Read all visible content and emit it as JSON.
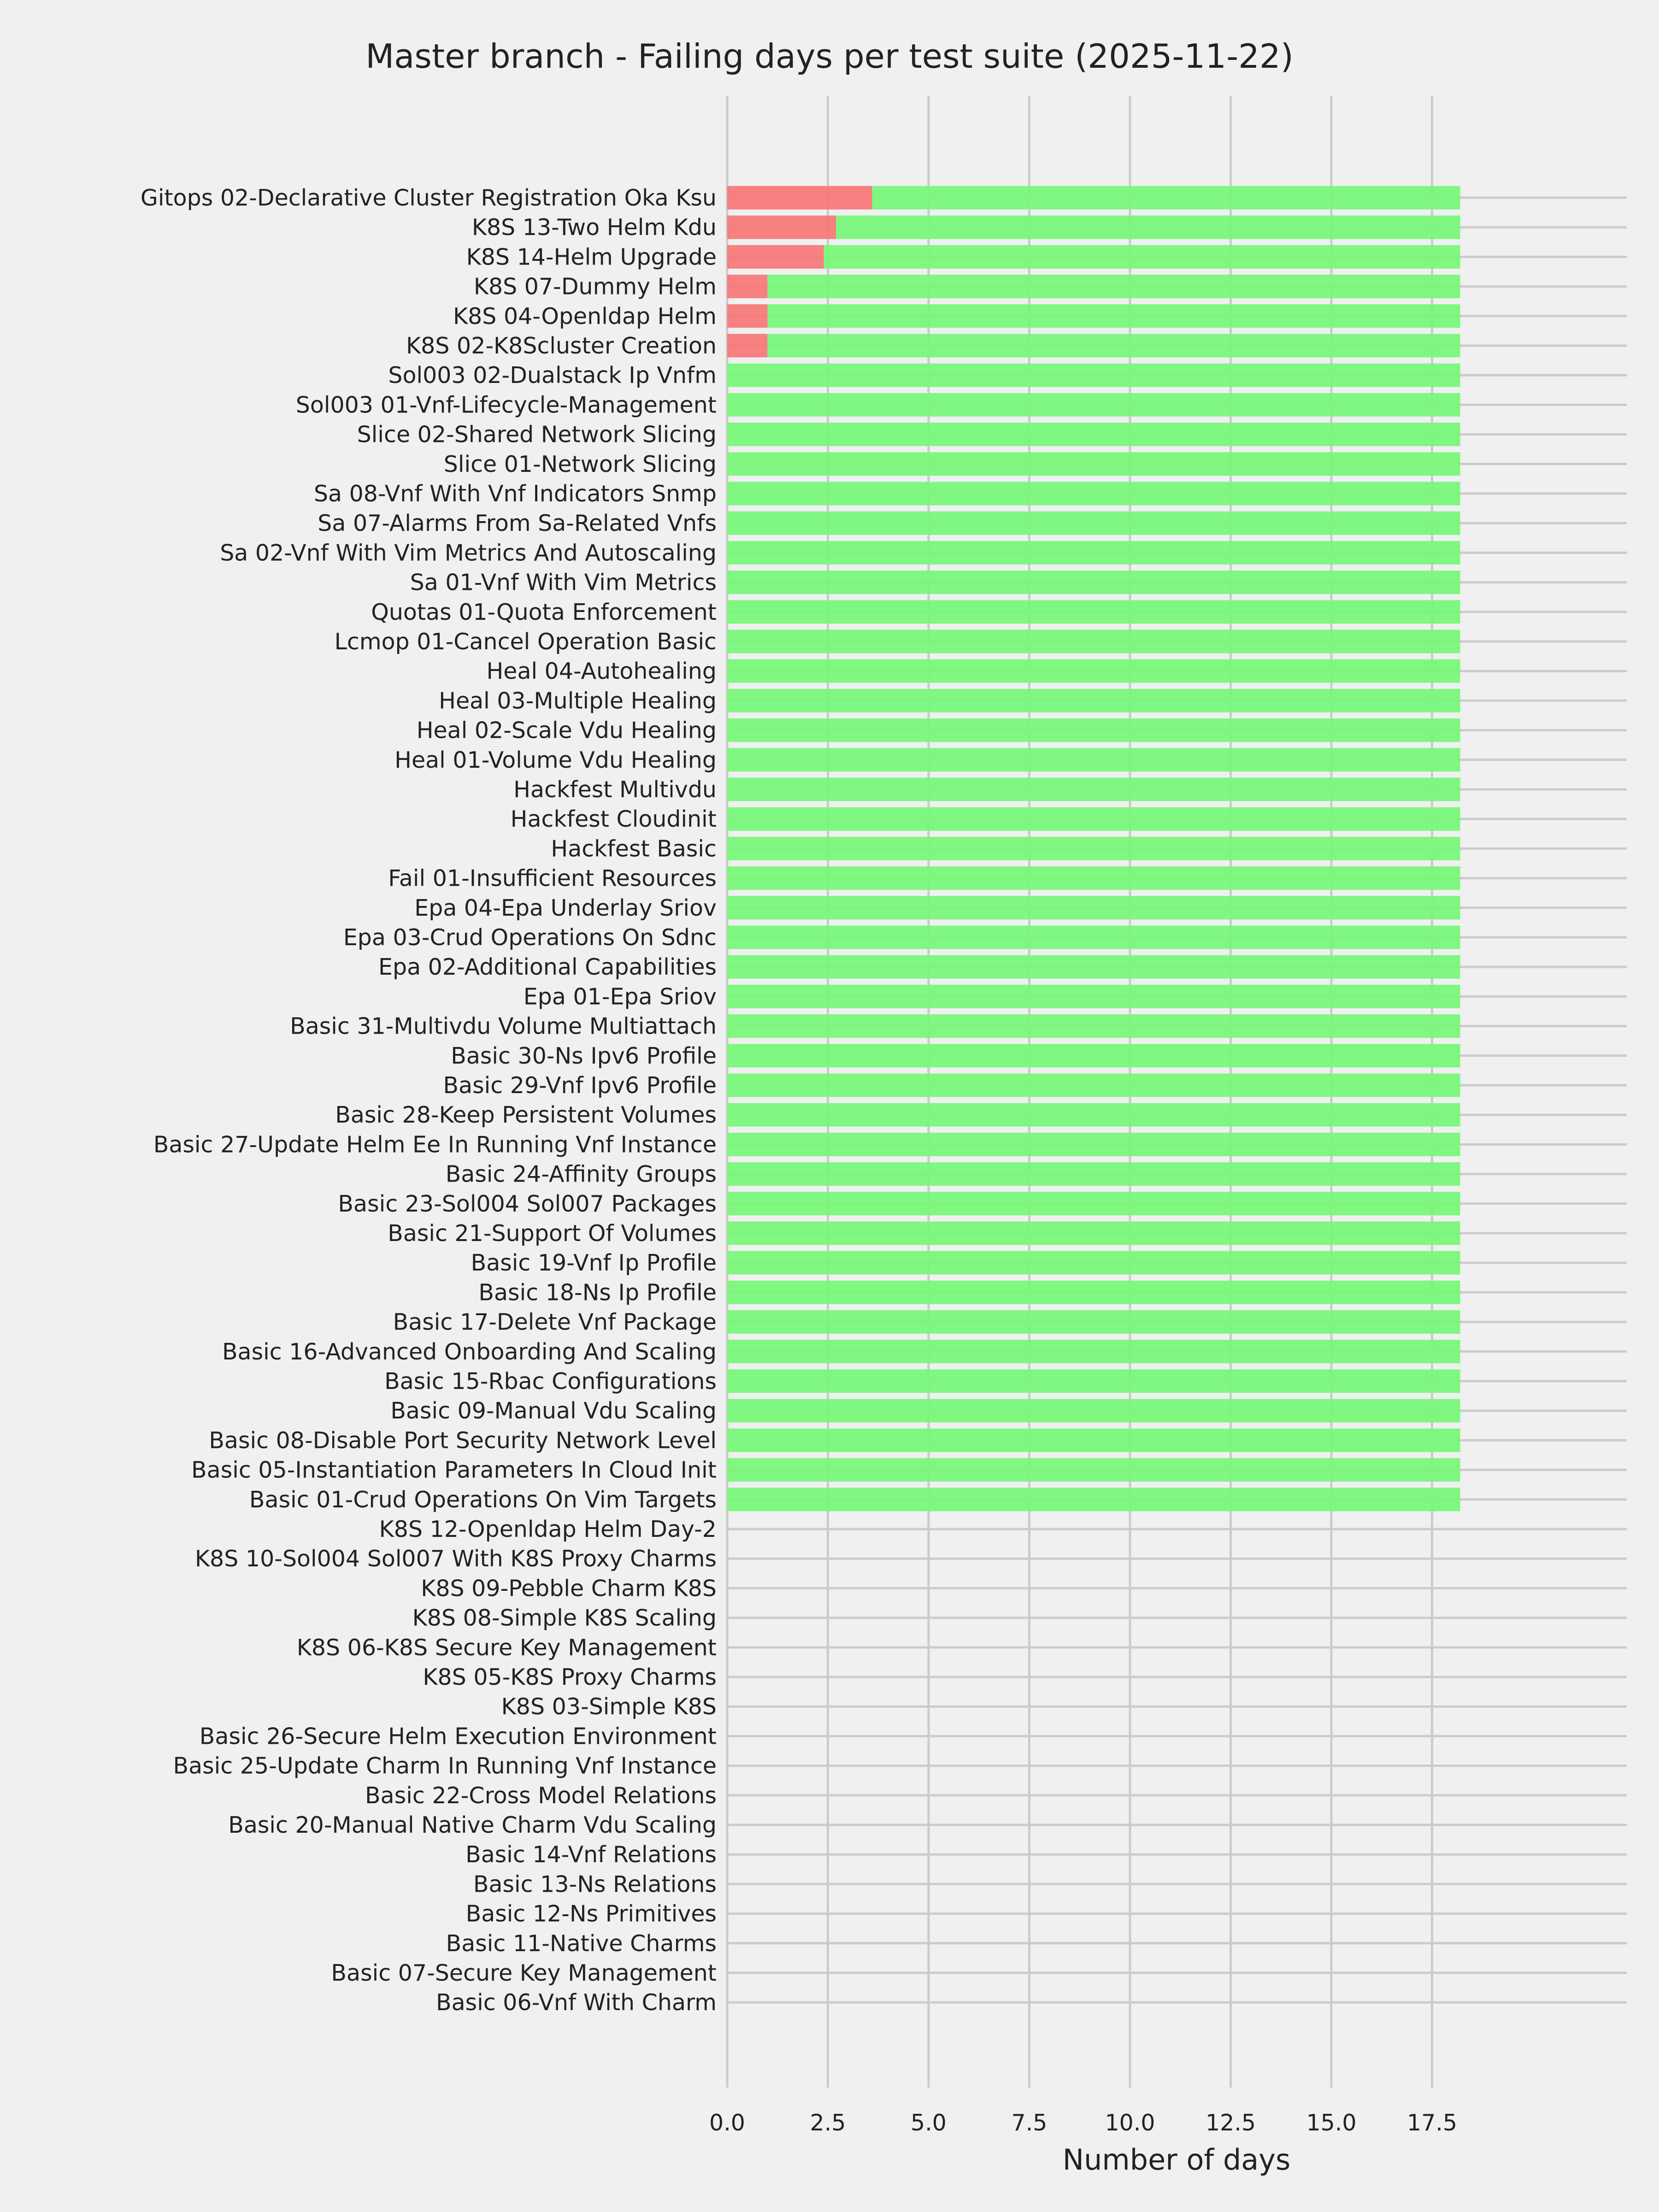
{
  "chart_data": {
    "type": "bar",
    "orientation": "horizontal",
    "stacked": true,
    "title": "Master branch - Failing days per test suite (2025-11-22)",
    "xlabel": "Number of days",
    "ylabel": "",
    "xlim": [
      0,
      19.2
    ],
    "xticks": [
      "0.0",
      "2.5",
      "5.0",
      "7.5",
      "10.0",
      "12.5",
      "15.0",
      "17.5"
    ],
    "grid": true,
    "legend": "none",
    "colors": {
      "failing": "#f87878",
      "passing": "#78f878",
      "background": "#f0f0f0",
      "grid": "#cbcbcb"
    },
    "categories": [
      "Gitops 02-Declarative Cluster Registration Oka Ksu",
      "K8S 13-Two Helm Kdu",
      "K8S 14-Helm Upgrade",
      "K8S 07-Dummy Helm",
      "K8S 04-Openldap Helm",
      "K8S 02-K8Scluster Creation",
      "Sol003 02-Dualstack Ip Vnfm",
      "Sol003 01-Vnf-Lifecycle-Management",
      "Slice 02-Shared Network Slicing",
      "Slice 01-Network Slicing",
      "Sa 08-Vnf With Vnf Indicators Snmp",
      "Sa 07-Alarms From Sa-Related Vnfs",
      "Sa 02-Vnf With Vim Metrics And Autoscaling",
      "Sa 01-Vnf With Vim Metrics",
      "Quotas 01-Quota Enforcement",
      "Lcmop 01-Cancel Operation Basic",
      "Heal 04-Autohealing",
      "Heal 03-Multiple Healing",
      "Heal 02-Scale Vdu Healing",
      "Heal 01-Volume Vdu Healing",
      "Hackfest Multivdu",
      "Hackfest Cloudinit",
      "Hackfest Basic",
      "Fail 01-Insufficient Resources",
      "Epa 04-Epa Underlay Sriov",
      "Epa 03-Crud Operations On Sdnc",
      "Epa 02-Additional Capabilities",
      "Epa 01-Epa Sriov",
      "Basic 31-Multivdu Volume Multiattach",
      "Basic 30-Ns Ipv6 Profile",
      "Basic 29-Vnf Ipv6 Profile",
      "Basic 28-Keep Persistent Volumes",
      "Basic 27-Update Helm Ee In Running Vnf Instance",
      "Basic 24-Affinity Groups",
      "Basic 23-Sol004 Sol007 Packages",
      "Basic 21-Support Of Volumes",
      "Basic 19-Vnf Ip Profile",
      "Basic 18-Ns Ip Profile",
      "Basic 17-Delete Vnf Package",
      "Basic 16-Advanced Onboarding And Scaling",
      "Basic 15-Rbac Configurations",
      "Basic 09-Manual Vdu Scaling",
      "Basic 08-Disable Port Security Network Level",
      "Basic 05-Instantiation Parameters In Cloud Init",
      "Basic 01-Crud Operations On Vim Targets",
      "K8S 12-Openldap Helm Day-2",
      "K8S 10-Sol004 Sol007 With K8S Proxy Charms",
      "K8S 09-Pebble Charm K8S",
      "K8S 08-Simple K8S Scaling",
      "K8S 06-K8S Secure Key Management",
      "K8S 05-K8S Proxy Charms",
      "K8S 03-Simple K8S",
      "Basic 26-Secure Helm Execution Environment",
      "Basic 25-Update Charm In Running Vnf Instance",
      "Basic 22-Cross Model Relations",
      "Basic 20-Manual Native Charm Vdu Scaling",
      "Basic 14-Vnf Relations",
      "Basic 13-Ns Relations",
      "Basic 12-Ns Primitives",
      "Basic 11-Native Charms",
      "Basic 07-Secure Key Management",
      "Basic 06-Vnf With Charm"
    ],
    "series": [
      {
        "color": "#f87878",
        "values": [
          3.6,
          2.7,
          2.4,
          1,
          1,
          1,
          0,
          0,
          0,
          0,
          0,
          0,
          0,
          0,
          0,
          0,
          0,
          0,
          0,
          0,
          0,
          0,
          0,
          0,
          0,
          0,
          0,
          0,
          0,
          0,
          0,
          0,
          0,
          0,
          0,
          0,
          0,
          0,
          0,
          0,
          0,
          0,
          0,
          0,
          0,
          0,
          0,
          0,
          0,
          0,
          0,
          0,
          0,
          0,
          0,
          0,
          0,
          0,
          0,
          0,
          0,
          0
        ]
      },
      {
        "color": "#78f878",
        "values": [
          14.6,
          15.5,
          15.8,
          17.2,
          17.2,
          17.2,
          18.2,
          18.2,
          18.2,
          18.2,
          18.2,
          18.2,
          18.2,
          18.2,
          18.2,
          18.2,
          18.2,
          18.2,
          18.2,
          18.2,
          18.2,
          18.2,
          18.2,
          18.2,
          18.2,
          18.2,
          18.2,
          18.2,
          18.2,
          18.2,
          18.2,
          18.2,
          18.2,
          18.2,
          18.2,
          18.2,
          18.2,
          18.2,
          18.2,
          18.2,
          18.2,
          18.2,
          18.2,
          18.2,
          18.2,
          0,
          0,
          0,
          0,
          0,
          0,
          0,
          0,
          0,
          0,
          0,
          0,
          0,
          0,
          0,
          0,
          0
        ]
      }
    ]
  }
}
